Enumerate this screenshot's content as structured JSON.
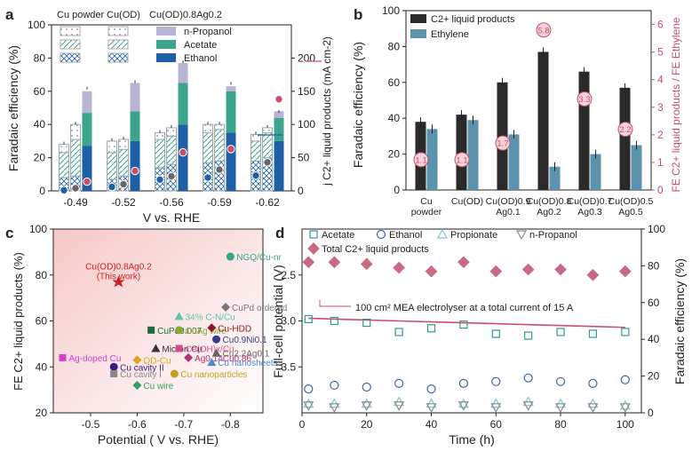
{
  "colors": {
    "cu_powder": "#dfe3ea",
    "cu_od": "#c7d3d8",
    "propanol": "#b8b4d6",
    "acetate": "#3aa58a",
    "ethanol": "#1f5fa6",
    "total": "#2a2a2a",
    "ethylene": "#5b93ad",
    "ratio": "#c8506a",
    "cuagod": "#cc3b3b",
    "potential": "#c8506a",
    "panel_d_acetate": "#2c9c8f",
    "panel_d_ethanol": "#3d67a8",
    "panel_d_propionate": "#7ec8c8",
    "panel_d_npropanol": "#8c8c8c",
    "panel_d_total": "#c96a83"
  },
  "chart_data": [
    {
      "panel": "a",
      "type": "bar",
      "xlabel": "V vs. RHE",
      "ylabel": "Faradaic efficiency (%)",
      "y2label": "j C2+ liquid products (mA cm-2)",
      "ylim": [
        0,
        100
      ],
      "y2lim": [
        0,
        250
      ],
      "categories": [
        "-0.49",
        "-0.52",
        "-0.56",
        "-0.59",
        "-0.62"
      ],
      "legend_groups": [
        "Cu powder",
        "Cu(OD)",
        "Cu(OD)0.8Ag0.2"
      ],
      "legend_products": [
        "n-Propanol",
        "Acetate",
        "Ethanol"
      ],
      "series": [
        {
          "name": "Cu powder",
          "ethanol": [
            8,
            7,
            14,
            17,
            18
          ],
          "acetate": [
            15,
            16,
            17,
            18,
            12
          ],
          "propanol": [
            5,
            7,
            4,
            5,
            4
          ],
          "total": [
            28,
            30,
            35,
            40,
            34
          ]
        },
        {
          "name": "Cu(OD)",
          "ethanol": [
            9,
            9,
            16,
            18,
            20
          ],
          "acetate": [
            22,
            16,
            17,
            19,
            15
          ],
          "propanol": [
            9,
            6,
            5,
            3,
            3
          ],
          "total": [
            40,
            31,
            38,
            40,
            38
          ]
        },
        {
          "name": "Cu(OD)0.8Ag0.2",
          "ethanol": [
            27,
            30,
            40,
            35,
            30
          ],
          "acetate": [
            20,
            18,
            25,
            25,
            14
          ],
          "propanol": [
            13,
            17,
            12,
            3,
            4
          ],
          "total": [
            61,
            65,
            77,
            64,
            47
          ]
        }
      ],
      "current_density": {
        "Cu powder": [
          1,
          6,
          17,
          20,
          23
        ],
        "Cu(OD)": [
          4,
          10,
          22,
          32,
          43
        ],
        "Cu(OD)0.8Ag0.2": [
          14,
          30,
          58,
          63,
          138
        ]
      }
    },
    {
      "panel": "b",
      "type": "bar",
      "ylabel": "Faradaic efficiency (%)",
      "y2label": "FE C2+ liquid products / FE Ethylene",
      "ylim": [
        0,
        100
      ],
      "y2lim": [
        0,
        6.5
      ],
      "categories": [
        "Cu\npowder",
        "Cu(OD)",
        "Cu(OD)0.9\nAg0.1",
        "Cu(OD)0.8\nAg0.2",
        "Cu(OD)0.7\nAg0.3",
        "Cu(OD)0.5\nAg0.5"
      ],
      "series": [
        {
          "name": "C2+ liquid products",
          "values": [
            38,
            42,
            60,
            77,
            66,
            57
          ]
        },
        {
          "name": "Ethylene",
          "values": [
            34,
            39,
            31,
            13,
            20,
            25
          ]
        }
      ],
      "ratio": [
        1.1,
        1.1,
        1.7,
        5.8,
        3.3,
        2.2
      ],
      "ratio_labels": [
        "1.1",
        "1.1",
        "1.7",
        "5.8",
        "3.3",
        "2.2"
      ]
    },
    {
      "panel": "c",
      "type": "scatter",
      "xlabel": "Potential ( V vs. RHE)",
      "ylabel": "FE C2+ liquid products (%)",
      "xlim": [
        -0.42,
        -0.87
      ],
      "ylim": [
        20,
        100
      ],
      "points": [
        {
          "label": "Cu(OD)0.8Ag0.2 (This work)",
          "x": -0.56,
          "y": 77,
          "color": "#cc2222"
        },
        {
          "label": "NGQ/Cu-nr",
          "x": -0.8,
          "y": 88,
          "color": "#2eaa88"
        },
        {
          "label": "CuPd ordered",
          "x": -0.79,
          "y": 66,
          "color": "#777777"
        },
        {
          "label": "34% C-N/Cu",
          "x": -0.69,
          "y": 62,
          "color": "#5cc6a6"
        },
        {
          "label": "CuPd0.007",
          "x": -0.63,
          "y": 56,
          "color": "#1f6b3a"
        },
        {
          "label": "CuAg wire",
          "x": -0.69,
          "y": 56,
          "color": "#8aa832"
        },
        {
          "label": "Cu-HDD",
          "x": -0.76,
          "y": 57,
          "color": "#8b1a1a"
        },
        {
          "label": "Micron Cu",
          "x": -0.64,
          "y": 48,
          "color": "#333333"
        },
        {
          "label": "Ce(OH)x/Cu",
          "x": -0.69,
          "y": 48,
          "color": "#d94a8c"
        },
        {
          "label": "Cu0.9Ni0.1",
          "x": -0.77,
          "y": 52,
          "color": "#3a3a8a"
        },
        {
          "label": "Ag0.14Cu0.86",
          "x": -0.71,
          "y": 44,
          "color": "#b03070"
        },
        {
          "label": "Cu2.2Ag0.1",
          "x": -0.77,
          "y": 46,
          "color": "#666666"
        },
        {
          "label": "Ag-doped Cu",
          "x": -0.44,
          "y": 44,
          "color": "#d040d0"
        },
        {
          "label": "Cu cavity II",
          "x": -0.55,
          "y": 40,
          "color": "#3a1a7a"
        },
        {
          "label": "OD-Cu",
          "x": -0.6,
          "y": 43,
          "color": "#e0a020"
        },
        {
          "label": "Cu nanosheets",
          "x": -0.76,
          "y": 42,
          "color": "#4a8ad0"
        },
        {
          "label": "Cu cavity I",
          "x": -0.55,
          "y": 37,
          "color": "#888888"
        },
        {
          "label": "Cu nanoparticles",
          "x": -0.68,
          "y": 37,
          "color": "#c8a020"
        },
        {
          "label": "Cu wire",
          "x": -0.6,
          "y": 32,
          "color": "#30a060"
        }
      ],
      "annotation": "(This work)"
    },
    {
      "panel": "d",
      "type": "scatter",
      "xlabel": "Time (h)",
      "ylabel": "Full-cell potential (V)",
      "y2label": "Faradaic efficiency (%)",
      "xlim": [
        0,
        105
      ],
      "ylim": [
        4.0,
        2.0
      ],
      "y2lim": [
        0,
        100
      ],
      "annotation": "100 cm² MEA electrolyser at a total current of 15 A",
      "legend": [
        "Acetate",
        "Ethanol",
        "Propionate",
        "n-Propanol",
        "Total C2+ liquid products"
      ],
      "x": [
        2,
        10,
        20,
        30,
        40,
        50,
        60,
        70,
        80,
        90,
        100
      ],
      "potential_line": [
        2.97,
        2.98,
        2.99,
        3.0,
        3.01,
        3.02,
        3.03,
        3.04,
        3.05,
        3.06,
        3.07
      ],
      "series": [
        {
          "name": "Acetate",
          "values": [
            51,
            50,
            49,
            44,
            46,
            48,
            43,
            42,
            44,
            43,
            44
          ]
        },
        {
          "name": "Ethanol",
          "values": [
            13,
            15,
            14,
            16,
            13,
            16,
            17,
            19,
            17,
            16,
            18
          ]
        },
        {
          "name": "Propionate",
          "values": [
            5,
            5,
            5,
            6,
            5,
            5,
            5,
            6,
            5,
            5,
            4
          ]
        },
        {
          "name": "n-Propanol",
          "values": [
            4,
            3,
            4,
            4,
            3,
            4,
            3,
            4,
            3,
            3,
            3
          ]
        },
        {
          "name": "Total C2+ liquid products",
          "values": [
            82,
            82,
            81,
            79,
            77,
            82,
            77,
            78,
            78,
            75,
            77
          ]
        }
      ]
    }
  ],
  "labels": {
    "panel_a": "a",
    "panel_b": "b",
    "panel_c": "c",
    "panel_d": "d"
  }
}
